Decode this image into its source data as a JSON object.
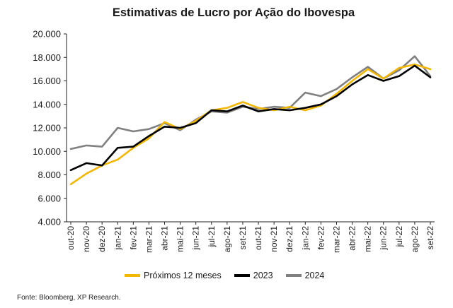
{
  "chart_data": {
    "type": "line",
    "title": "Estimativas de Lucro por Ação do Ibovespa",
    "xlabel": "",
    "ylabel": "",
    "ylim": [
      4000,
      20000
    ],
    "yticks": [
      "4.000",
      "6.000",
      "8.000",
      "10.000",
      "12.000",
      "14.000",
      "16.000",
      "18.000",
      "20.000"
    ],
    "ytick_values": [
      4000,
      6000,
      8000,
      10000,
      12000,
      14000,
      16000,
      18000,
      20000
    ],
    "categories": [
      "out-20",
      "nov-20",
      "dez-20",
      "jan-21",
      "fev-21",
      "mar-21",
      "abr-21",
      "mai-21",
      "jun-21",
      "jul-21",
      "ago-21",
      "set-21",
      "out-21",
      "nov-21",
      "dez-21",
      "jan-22",
      "fev-22",
      "mar-22",
      "abr-22",
      "mai-22",
      "jun-22",
      "jul-22",
      "ago-22",
      "set-22"
    ],
    "tick_labels": [
      "out-20",
      "nov-20",
      "dez-20",
      "jan-21",
      "fev-21",
      "mar-21",
      "abr-21",
      "mai-21",
      "jun-21",
      "jul-21",
      "ago-21",
      "set-21",
      "out-21",
      "nov-21",
      "dez-21",
      "jan-22",
      "fev-22",
      "mar-22",
      "abr-22",
      "mai-22",
      "jun-22",
      "jul-22",
      "ago-22",
      "set-22"
    ],
    "series": [
      {
        "name": "Próximos 12 meses",
        "color": "#f2b705",
        "values": [
          7200,
          8100,
          8800,
          9300,
          10300,
          11100,
          12500,
          11900,
          12600,
          13500,
          13700,
          14200,
          13700,
          13500,
          13800,
          13500,
          13900,
          14900,
          16000,
          17000,
          16200,
          17100,
          17400,
          17000
        ]
      },
      {
        "name": "2023",
        "color": "#000000",
        "values": [
          8400,
          9000,
          8800,
          10300,
          10400,
          11300,
          12100,
          12000,
          12400,
          13500,
          13400,
          13900,
          13400,
          13600,
          13500,
          13700,
          14000,
          14700,
          15700,
          16500,
          16000,
          16400,
          17300,
          16300
        ]
      },
      {
        "name": "2024",
        "color": "#808080",
        "values": [
          10200,
          10500,
          10400,
          12000,
          11700,
          11900,
          12400,
          11800,
          12700,
          13400,
          13300,
          13800,
          13600,
          13800,
          13700,
          15000,
          14700,
          15300,
          16300,
          17200,
          16200,
          16900,
          18100,
          16400
        ]
      }
    ]
  },
  "footer": {
    "source": "Fonte: Bloomberg, XP Research."
  }
}
